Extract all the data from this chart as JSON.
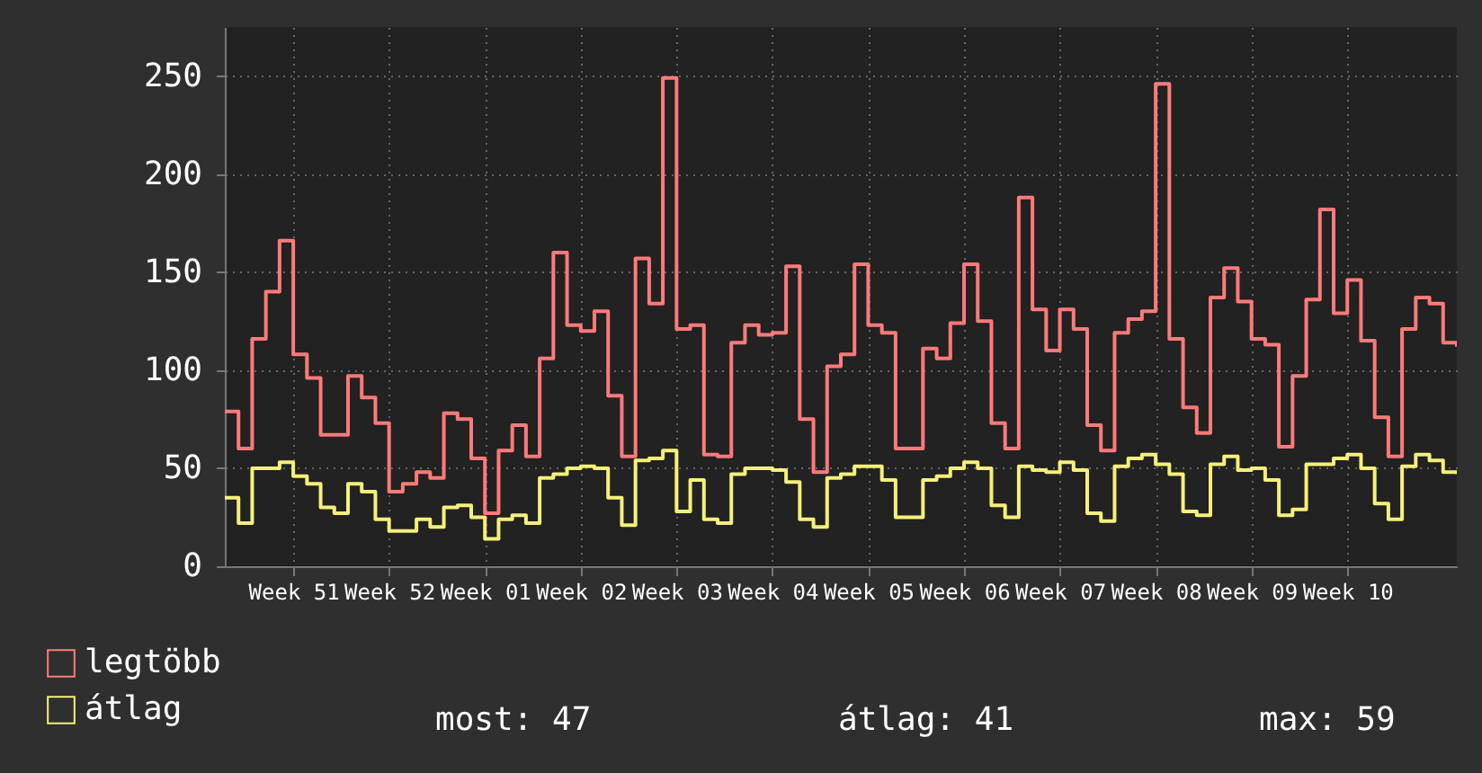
{
  "chart_data": {
    "type": "step",
    "categories": [
      null,
      null,
      null,
      null,
      null,
      "Week 51",
      null,
      null,
      null,
      null,
      null,
      null,
      "Week 52",
      null,
      null,
      null,
      null,
      null,
      null,
      "Week 01",
      null,
      null,
      null,
      null,
      null,
      null,
      "Week 02",
      null,
      null,
      null,
      null,
      null,
      null,
      "Week 03",
      null,
      null,
      null,
      null,
      null,
      null,
      "Week 04",
      null,
      null,
      null,
      null,
      null,
      null,
      "Week 05",
      null,
      null,
      null,
      null,
      null,
      null,
      "Week 06",
      null,
      null,
      null,
      null,
      null,
      null,
      "Week 07",
      null,
      null,
      null,
      null,
      null,
      null,
      "Week 08",
      null,
      null,
      null,
      null,
      null,
      null,
      "Week 09",
      null,
      null,
      null,
      null,
      null,
      null,
      "Week 10",
      null,
      null,
      null,
      null,
      null,
      null,
      null,
      null
    ],
    "series": [
      {
        "name": "legtöbb",
        "color": "#ff7a7a",
        "values": [
          79,
          60,
          116,
          140,
          166,
          108,
          96,
          67,
          67,
          97,
          86,
          73,
          38,
          42,
          48,
          45,
          78,
          75,
          55,
          27,
          59,
          72,
          56,
          106,
          160,
          123,
          120,
          130,
          87,
          56,
          157,
          134,
          249,
          121,
          123,
          57,
          56,
          114,
          123,
          118,
          119,
          153,
          75,
          48,
          102,
          108,
          154,
          123,
          119,
          60,
          60,
          111,
          106,
          124,
          154,
          125,
          73,
          60,
          188,
          131,
          110,
          131,
          121,
          72,
          59,
          119,
          126,
          130,
          246,
          116,
          81,
          68,
          137,
          152,
          135,
          116,
          113,
          61,
          97,
          136,
          182,
          129,
          146,
          115,
          76,
          56,
          121,
          137,
          134,
          114,
          112
        ]
      },
      {
        "name": "átlag",
        "color": "#f5f07a",
        "values": [
          35,
          22,
          50,
          50,
          53,
          46,
          42,
          30,
          27,
          42,
          38,
          24,
          18,
          18,
          24,
          20,
          30,
          31,
          25,
          14,
          24,
          26,
          22,
          45,
          47,
          50,
          51,
          50,
          35,
          21,
          54,
          55,
          59,
          28,
          44,
          24,
          22,
          47,
          50,
          50,
          49,
          43,
          24,
          20,
          45,
          47,
          51,
          51,
          44,
          25,
          25,
          44,
          46,
          50,
          53,
          50,
          31,
          25,
          51,
          49,
          48,
          53,
          49,
          27,
          23,
          51,
          55,
          57,
          52,
          47,
          28,
          26,
          52,
          56,
          49,
          50,
          44,
          26,
          29,
          52,
          52,
          55,
          57,
          50,
          32,
          24,
          51,
          57,
          54,
          48,
          47
        ]
      }
    ],
    "ylim": [
      0,
      275
    ],
    "yticks": [
      0,
      50,
      100,
      150,
      200,
      250
    ],
    "grid": true,
    "legend": "bottom left",
    "annotations": [
      "most: 47",
      "átlag: 41",
      "max: 59"
    ]
  }
}
